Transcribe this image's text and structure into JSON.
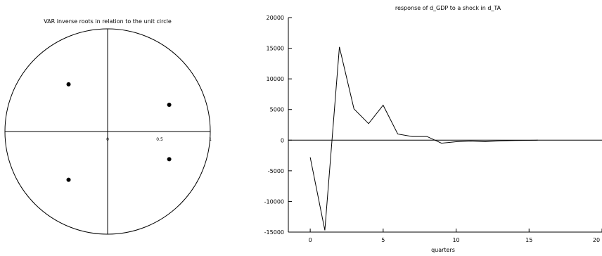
{
  "chart_data": [
    {
      "type": "scatter",
      "title": "VAR inverse roots in relation to the unit circle",
      "xlim": [
        -1,
        1
      ],
      "ylim": [
        -1,
        1
      ],
      "tick_labels": [
        "0",
        "0.5",
        "1"
      ],
      "unit_circle": true,
      "points": [
        {
          "x": -0.38,
          "y": 0.46
        },
        {
          "x": 0.6,
          "y": 0.26
        },
        {
          "x": 0.6,
          "y": -0.27
        },
        {
          "x": -0.38,
          "y": -0.47
        }
      ]
    },
    {
      "type": "line",
      "title": "response of d_GDP to a shock in d_TA",
      "xlabel": "quarters",
      "ylabel": "",
      "xlim": [
        -1.5,
        20
      ],
      "ylim": [
        -15000,
        20000
      ],
      "xticks": [
        "0",
        "5",
        "10",
        "15",
        "20"
      ],
      "yticks": [
        "20000",
        "15000",
        "10000",
        "5000",
        "0",
        "-5000",
        "-10000",
        "-15000"
      ],
      "zero_line": true,
      "series": [
        {
          "x": [
            0,
            1,
            2,
            3,
            4,
            5,
            6,
            7,
            8,
            9,
            10,
            11,
            12,
            13,
            14,
            15,
            15.6
          ],
          "values": [
            -2800,
            -14700,
            15200,
            5100,
            2700,
            5700,
            1000,
            600,
            600,
            -500,
            -250,
            -150,
            -250,
            -100,
            -50,
            -20,
            0
          ]
        }
      ]
    }
  ]
}
